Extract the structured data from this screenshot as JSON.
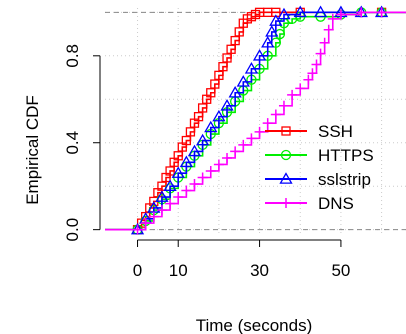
{
  "chart_data": {
    "type": "line",
    "subtype": "empirical-cdf-step",
    "xlabel": "Time (seconds)",
    "ylabel": "Empirical CDF",
    "xlim": [
      -8,
      66
    ],
    "ylim": [
      -0.02,
      1.02
    ],
    "xticks": [
      0,
      10,
      30,
      50
    ],
    "yticks": [
      0.0,
      0.4,
      0.8
    ],
    "grid": true,
    "reference_lines": [
      0,
      1
    ],
    "legend_position": "bottom-right",
    "series": [
      {
        "name": "SSH",
        "color": "#ff0000",
        "marker": "square",
        "x": [
          -8,
          0,
          1,
          2,
          3,
          4,
          5,
          6,
          7,
          8,
          9,
          10,
          11,
          12,
          13,
          14,
          15,
          16,
          17,
          18,
          19,
          20,
          21,
          22,
          23,
          24,
          25,
          26,
          27,
          28,
          29,
          30,
          32,
          34,
          40,
          60,
          66
        ],
        "y": [
          0.0,
          0.0,
          0.03,
          0.06,
          0.1,
          0.13,
          0.17,
          0.2,
          0.24,
          0.27,
          0.31,
          0.34,
          0.38,
          0.41,
          0.45,
          0.49,
          0.52,
          0.56,
          0.6,
          0.63,
          0.67,
          0.71,
          0.75,
          0.79,
          0.83,
          0.87,
          0.91,
          0.95,
          0.97,
          0.98,
          0.99,
          1.0,
          1.0,
          1.0,
          1.0,
          1.0,
          1.0
        ]
      },
      {
        "name": "HTTPS",
        "color": "#00ee00",
        "marker": "circle",
        "x": [
          -8,
          0,
          2,
          4,
          6,
          8,
          10,
          12,
          14,
          16,
          18,
          20,
          22,
          24,
          26,
          28,
          30,
          32,
          34,
          35,
          36,
          38,
          40,
          45,
          50,
          55,
          60,
          66
        ],
        "y": [
          0.0,
          0.0,
          0.04,
          0.09,
          0.14,
          0.19,
          0.24,
          0.29,
          0.34,
          0.39,
          0.44,
          0.49,
          0.54,
          0.59,
          0.64,
          0.69,
          0.74,
          0.8,
          0.86,
          0.9,
          0.95,
          0.97,
          0.98,
          0.98,
          0.99,
          1.0,
          1.0,
          1.0
        ]
      },
      {
        "name": "sslstrip",
        "color": "#0000ff",
        "marker": "triangle",
        "x": [
          -8,
          0,
          2,
          4,
          6,
          8,
          10,
          12,
          14,
          16,
          18,
          20,
          22,
          24,
          26,
          28,
          30,
          32,
          33,
          34,
          36,
          40,
          45,
          50,
          55,
          60,
          66
        ],
        "y": [
          0.0,
          0.0,
          0.05,
          0.1,
          0.15,
          0.2,
          0.26,
          0.31,
          0.36,
          0.41,
          0.47,
          0.52,
          0.57,
          0.63,
          0.68,
          0.74,
          0.8,
          0.86,
          0.91,
          0.96,
          0.99,
          1.0,
          1.0,
          1.0,
          1.0,
          1.0,
          1.0
        ]
      },
      {
        "name": "DNS",
        "color": "#ff00ff",
        "marker": "plus",
        "x": [
          -8,
          0,
          2,
          4,
          6,
          8,
          10,
          12,
          14,
          16,
          18,
          20,
          22,
          24,
          26,
          28,
          30,
          32,
          34,
          36,
          38,
          40,
          42,
          43,
          44,
          45,
          46,
          47,
          48,
          50,
          55,
          60,
          66
        ],
        "y": [
          0.0,
          0.0,
          0.03,
          0.06,
          0.09,
          0.12,
          0.15,
          0.18,
          0.21,
          0.24,
          0.27,
          0.3,
          0.33,
          0.36,
          0.39,
          0.42,
          0.45,
          0.49,
          0.53,
          0.57,
          0.62,
          0.65,
          0.69,
          0.72,
          0.76,
          0.81,
          0.86,
          0.92,
          0.97,
          0.99,
          1.0,
          1.0,
          1.0
        ]
      }
    ]
  }
}
